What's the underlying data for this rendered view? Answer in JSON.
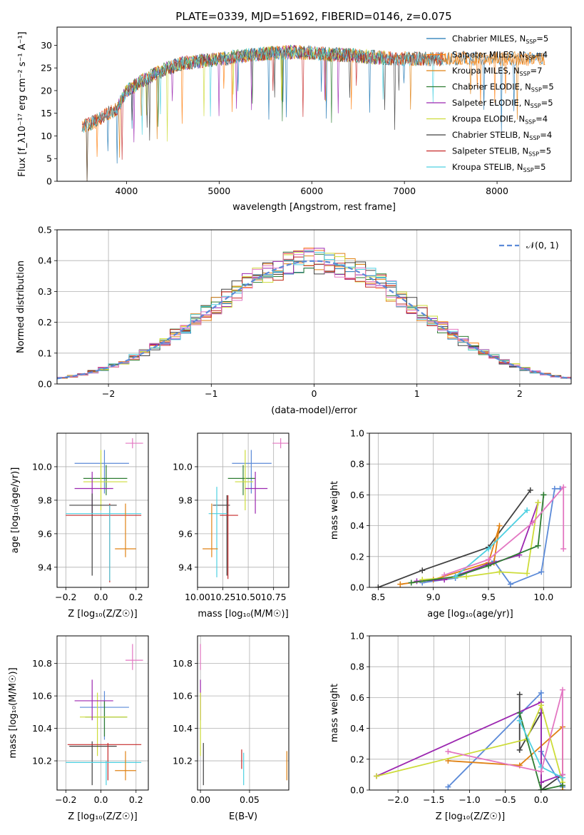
{
  "figure": {
    "title": "PLATE=0339, MJD=51692, FIBERID=0146, z=0.075"
  },
  "chart_data": [
    {
      "id": "spectrum",
      "type": "line",
      "xlabel": "wavelength [Angstrom, rest frame]",
      "ylabel": "Flux [f_λ10⁻¹⁷ erg cm⁻² s⁻¹ A⁻¹]",
      "xlim": [
        3250,
        8800
      ],
      "ylim": [
        0,
        34
      ],
      "xticks": [
        4000,
        5000,
        6000,
        7000,
        8000
      ],
      "yticks": [
        0,
        5,
        10,
        15,
        20,
        25,
        30
      ],
      "grid": false,
      "legend_position": "top-right",
      "continuum": {
        "x": [
          3520,
          3650,
          3800,
          3900,
          4000,
          4200,
          4400,
          4600,
          4800,
          5000,
          5200,
          5400,
          5600,
          5800,
          6000,
          6200,
          6400,
          6600,
          6800,
          7000,
          7200,
          7420
        ],
        "y": [
          12,
          13,
          15,
          16,
          20,
          22.5,
          24.5,
          26,
          26.5,
          27,
          27.5,
          28,
          28.3,
          28.5,
          28.3,
          28,
          27.8,
          27.5,
          27.2,
          27,
          27,
          27
        ]
      },
      "series": [
        {
          "name": "Chabrier MILES, N_SSP=5",
          "label_main": "Chabrier MILES, N",
          "label_tail": "=5",
          "color": "#1f77b4",
          "x_range": [
            3520,
            8520
          ]
        },
        {
          "name": "Salpeter MILES, N_SSP=4",
          "label_main": "Salpeter MILES, N",
          "label_tail": "=4",
          "color": "#ff7f0e",
          "x_range": [
            3520,
            8520
          ]
        },
        {
          "name": "Kroupa MILES, N_SSP=7",
          "label_main": "Kroupa MILES, N",
          "label_tail": "=7",
          "color": "#e08214",
          "x_range": [
            3520,
            8520
          ]
        },
        {
          "name": "Chabrier ELODIE, N_SSP=5",
          "label_main": "Chabrier ELODIE, N",
          "label_tail": "=5",
          "color": "#2e7d32",
          "x_range": [
            3900,
            6800
          ]
        },
        {
          "name": "Salpeter ELODIE, N_SSP=5",
          "label_main": "Salpeter ELODIE, N",
          "label_tail": "=5",
          "color": "#9c27b0",
          "x_range": [
            3900,
            6800
          ]
        },
        {
          "name": "Kroupa ELODIE, N_SSP=4",
          "label_main": "Kroupa ELODIE, N",
          "label_tail": "=4",
          "color": "#cddc39",
          "x_range": [
            3900,
            6800
          ]
        },
        {
          "name": "Chabrier STELIB, N_SSP=4",
          "label_main": "Chabrier STELIB, N",
          "label_tail": "=4",
          "color": "#404040",
          "x_range": [
            3520,
            7420
          ]
        },
        {
          "name": "Salpeter STELIB, N_SSP=5",
          "label_main": "Salpeter STELIB, N",
          "label_tail": "=5",
          "color": "#c62828",
          "x_range": [
            3520,
            7420
          ]
        },
        {
          "name": "Kroupa STELIB, N_SSP=5",
          "label_main": "Kroupa STELIB, N",
          "label_tail": "=5",
          "color": "#4dd0e1",
          "x_range": [
            3520,
            7420
          ]
        }
      ],
      "legend_subscript": "SSP"
    },
    {
      "id": "residuals",
      "type": "histogram",
      "xlabel": "(data-model)/error",
      "ylabel": "Normed distribution",
      "xlim": [
        -2.5,
        2.5
      ],
      "ylim": [
        0,
        0.5
      ],
      "xticks": [
        -2,
        -1,
        0,
        1,
        2
      ],
      "yticks": [
        0.0,
        0.1,
        0.2,
        0.3,
        0.4,
        0.5
      ],
      "grid": true,
      "bin_width": 0.1,
      "reference": {
        "name": "𝒩(0, 1)",
        "color": "#5b8ad8"
      },
      "series_colors": [
        "#1f77b4",
        "#ff7f0e",
        "#e08214",
        "#2e7d32",
        "#9c27b0",
        "#cddc39",
        "#404040",
        "#c62828",
        "#4dd0e1",
        "#e377c2"
      ]
    },
    {
      "id": "age-vs-Z",
      "type": "errorbar",
      "xlabel": "Z [log₁₀(Z/Z☉)]",
      "ylabel": "age  [log₁₀(age/yr)]",
      "xlim": [
        -0.25,
        0.27
      ],
      "ylim": [
        9.28,
        10.2
      ],
      "xticks": [
        -0.2,
        0.0,
        0.2
      ],
      "xticklabels": [
        "−0.2",
        "0.0",
        "0.2"
      ],
      "yticks": [
        9.4,
        9.6,
        9.8,
        10.0
      ],
      "grid": true,
      "points": [
        {
          "x": 0.02,
          "y": 10.02,
          "xerr": [
            0.17,
            0.14
          ],
          "yerr": [
            0.18,
            0.08
          ],
          "color": "#5b8ad8"
        },
        {
          "x": 0.03,
          "y": 9.93,
          "xerr": [
            0.13,
            0.12
          ],
          "yerr": [
            0.1,
            0.08
          ],
          "color": "#2e7d32"
        },
        {
          "x": 0.0,
          "y": 9.91,
          "xerr": [
            0.1,
            0.15
          ],
          "yerr": [
            0.17,
            0.19
          ],
          "color": "#cddc39"
        },
        {
          "x": -0.05,
          "y": 9.87,
          "xerr": [
            0.1,
            0.12
          ],
          "yerr": [
            0.15,
            0.1
          ],
          "color": "#9c27b0"
        },
        {
          "x": -0.05,
          "y": 9.77,
          "xerr": [
            0.13,
            0.14
          ],
          "yerr": [
            0.42,
            0.07
          ],
          "color": "#404040"
        },
        {
          "x": 0.05,
          "y": 9.71,
          "xerr": [
            0.25,
            0.18
          ],
          "yerr": [
            0.4,
            0.07
          ],
          "color": "#c62828"
        },
        {
          "x": 0.05,
          "y": 9.72,
          "xerr": [
            0.25,
            0.18
          ],
          "yerr": [
            0.4,
            0.05
          ],
          "color": "#4dd0e1"
        },
        {
          "x": 0.14,
          "y": 9.51,
          "xerr": [
            0.06,
            0.06
          ],
          "yerr": [
            0.05,
            0.27
          ],
          "color": "#e08214"
        },
        {
          "x": 0.18,
          "y": 10.14,
          "xerr": [
            0.04,
            0.06
          ],
          "yerr": [
            0.03,
            0.03
          ],
          "color": "#e377c2"
        }
      ]
    },
    {
      "id": "age-vs-mass",
      "type": "errorbar",
      "xlabel": "mass [log₁₀(M/M☉)]",
      "ylabel": "",
      "xlim": [
        10.0,
        10.9
      ],
      "ylim": [
        9.28,
        10.2
      ],
      "xticks": [
        10.0,
        10.25,
        10.5,
        10.75
      ],
      "xticklabels": [
        "10.00",
        "10.25",
        "10.50",
        "10.75"
      ],
      "yticks": [
        9.4,
        9.6,
        9.8,
        10.0
      ],
      "grid": true,
      "points": [
        {
          "x": 10.53,
          "y": 10.02,
          "xerr": [
            0.19,
            0.2
          ],
          "yerr": [
            0.18,
            0.08
          ],
          "color": "#5b8ad8"
        },
        {
          "x": 10.45,
          "y": 9.93,
          "xerr": [
            0.15,
            0.12
          ],
          "yerr": [
            0.1,
            0.08
          ],
          "color": "#2e7d32"
        },
        {
          "x": 10.47,
          "y": 9.91,
          "xerr": [
            0.1,
            0.08
          ],
          "yerr": [
            0.17,
            0.19
          ],
          "color": "#cddc39"
        },
        {
          "x": 10.57,
          "y": 9.87,
          "xerr": [
            0.1,
            0.12
          ],
          "yerr": [
            0.15,
            0.1
          ],
          "color": "#9c27b0"
        },
        {
          "x": 10.29,
          "y": 9.77,
          "xerr": [
            0.14,
            0.03
          ],
          "yerr": [
            0.42,
            0.06
          ],
          "color": "#404040"
        },
        {
          "x": 10.3,
          "y": 9.71,
          "xerr": [
            0.08,
            0.1
          ],
          "yerr": [
            0.38,
            0.12
          ],
          "color": "#c62828"
        },
        {
          "x": 10.19,
          "y": 9.72,
          "xerr": [
            0.08,
            0.1
          ],
          "yerr": [
            0.38,
            0.16
          ],
          "color": "#4dd0e1"
        },
        {
          "x": 10.14,
          "y": 9.51,
          "xerr": [
            0.09,
            0.06
          ],
          "yerr": [
            0.05,
            0.27
          ],
          "color": "#e08214"
        },
        {
          "x": 10.82,
          "y": 10.14,
          "xerr": [
            0.08,
            0.1
          ],
          "yerr": [
            0.03,
            0.03
          ],
          "color": "#e377c2"
        }
      ]
    },
    {
      "id": "mass-weight-vs-age",
      "type": "line",
      "xlabel": "age  [log₁₀(age/yr)]",
      "ylabel": "mass weight",
      "xlim": [
        8.42,
        10.25
      ],
      "ylim": [
        0,
        1.0
      ],
      "xticks": [
        8.5,
        9.0,
        9.5,
        10.0
      ],
      "yticks": [
        0.0,
        0.2,
        0.4,
        0.6,
        0.8,
        1.0
      ],
      "grid": true,
      "series": [
        {
          "color": "#404040",
          "x": [
            8.5,
            8.9,
            9.5,
            9.88
          ],
          "y": [
            0.0,
            0.11,
            0.26,
            0.63
          ]
        },
        {
          "color": "#5b8ad8",
          "x": [
            8.9,
            9.2,
            9.55,
            9.7,
            9.98,
            10.1,
            10.15
          ],
          "y": [
            0.03,
            0.06,
            0.17,
            0.02,
            0.1,
            0.64,
            0.64
          ]
        },
        {
          "color": "#e08214",
          "x": [
            8.7,
            9.0,
            9.5,
            9.6,
            9.55
          ],
          "y": [
            0.02,
            0.05,
            0.16,
            0.4,
            0.16
          ]
        },
        {
          "color": "#9c27b0",
          "x": [
            8.85,
            9.1,
            9.5,
            9.78,
            9.95
          ],
          "y": [
            0.04,
            0.05,
            0.15,
            0.21,
            0.55
          ]
        },
        {
          "color": "#cddc39",
          "x": [
            8.9,
            9.3,
            9.6,
            9.85,
            9.95
          ],
          "y": [
            0.05,
            0.07,
            0.1,
            0.09,
            0.55
          ]
        },
        {
          "color": "#2e7d32",
          "x": [
            8.8,
            9.2,
            9.5,
            9.95,
            10.0,
            10.0
          ],
          "y": [
            0.03,
            0.07,
            0.14,
            0.27,
            0.6,
            0.6
          ]
        },
        {
          "color": "#4dd0e1",
          "x": [
            9.2,
            9.5,
            9.85
          ],
          "y": [
            0.07,
            0.25,
            0.5
          ]
        },
        {
          "color": "#e377c2",
          "x": [
            9.1,
            9.5,
            9.9,
            10.18,
            10.18
          ],
          "y": [
            0.08,
            0.18,
            0.42,
            0.65,
            0.25
          ]
        }
      ]
    },
    {
      "id": "mass-vs-Z",
      "type": "errorbar",
      "xlabel": "Z [log₁₀(Z/Z☉)]",
      "ylabel": "mass [log₁₀(M/M☉)]",
      "xlim": [
        -0.25,
        0.27
      ],
      "ylim": [
        10.02,
        10.97
      ],
      "xticks": [
        -0.2,
        0.0,
        0.2
      ],
      "xticklabels": [
        "−0.2",
        "0.0",
        "0.2"
      ],
      "yticks": [
        10.2,
        10.4,
        10.6,
        10.8
      ],
      "grid": true,
      "points": [
        {
          "x": 0.02,
          "y": 10.53,
          "xerr": [
            0.14,
            0.14
          ],
          "yerr": [
            0.2,
            0.1
          ],
          "color": "#5b8ad8"
        },
        {
          "x": 0.02,
          "y": 10.47,
          "xerr": [
            0.11,
            0.13
          ],
          "yerr": [
            0.12,
            0.1
          ],
          "color": "#2e7d32"
        },
        {
          "x": -0.02,
          "y": 10.47,
          "xerr": [
            0.1,
            0.17
          ],
          "yerr": [
            0.24,
            0.15
          ],
          "color": "#cddc39"
        },
        {
          "x": -0.05,
          "y": 10.57,
          "xerr": [
            0.1,
            0.12
          ],
          "yerr": [
            0.12,
            0.13
          ],
          "color": "#9c27b0"
        },
        {
          "x": -0.05,
          "y": 10.29,
          "xerr": [
            0.13,
            0.14
          ],
          "yerr": [
            0.24,
            0.03
          ],
          "color": "#404040"
        },
        {
          "x": 0.04,
          "y": 10.3,
          "xerr": [
            0.23,
            0.19
          ],
          "yerr": [
            0.22,
            0.01
          ],
          "color": "#c62828"
        },
        {
          "x": 0.03,
          "y": 10.19,
          "xerr": [
            0.23,
            0.2
          ],
          "yerr": [
            0.14,
            0.01
          ],
          "color": "#4dd0e1"
        },
        {
          "x": 0.14,
          "y": 10.14,
          "xerr": [
            0.06,
            0.06
          ],
          "yerr": [
            0.06,
            0.12
          ],
          "color": "#e08214"
        },
        {
          "x": 0.18,
          "y": 10.82,
          "xerr": [
            0.04,
            0.06
          ],
          "yerr": [
            0.06,
            0.1
          ],
          "color": "#e377c2"
        }
      ]
    },
    {
      "id": "ebv",
      "type": "errorbar",
      "xlabel": "E(B-V)",
      "ylabel": "",
      "xlim": [
        -0.003,
        0.09
      ],
      "ylim": [
        10.02,
        10.97
      ],
      "xticks": [
        0.0,
        0.05
      ],
      "xticklabels": [
        "0.00",
        "0.05"
      ],
      "yticks": [
        10.2,
        10.4,
        10.6,
        10.8
      ],
      "grid": true,
      "points": [
        {
          "x": 0.0,
          "y": 10.82,
          "xerr": [
            0,
            0
          ],
          "yerr": [
            0.06,
            0.1
          ],
          "color": "#e377c2"
        },
        {
          "x": 0.0,
          "y": 10.57,
          "xerr": [
            0,
            0
          ],
          "yerr": [
            0.12,
            0.13
          ],
          "color": "#9c27b0"
        },
        {
          "x": 0.0,
          "y": 10.47,
          "xerr": [
            0,
            0
          ],
          "yerr": [
            0.24,
            0.15
          ],
          "color": "#cddc39"
        },
        {
          "x": 0.003,
          "y": 10.19,
          "xerr": [
            0,
            0
          ],
          "yerr": [
            0.14,
            0.12
          ],
          "color": "#404040"
        },
        {
          "x": 0.042,
          "y": 10.2,
          "xerr": [
            0,
            0
          ],
          "yerr": [
            0.05,
            0.07
          ],
          "color": "#c62828"
        },
        {
          "x": 0.044,
          "y": 10.17,
          "xerr": [
            0,
            0
          ],
          "yerr": [
            0.12,
            0.08
          ],
          "color": "#4dd0e1"
        },
        {
          "x": 0.088,
          "y": 10.17,
          "xerr": [
            0,
            0
          ],
          "yerr": [
            0.09,
            0.09
          ],
          "color": "#e08214"
        }
      ]
    },
    {
      "id": "mass-weight-vs-Z",
      "type": "line",
      "xlabel": "Z [log₁₀(Z/Z☉)]",
      "ylabel": "mass weight",
      "xlim": [
        -2.4,
        0.42
      ],
      "ylim": [
        0,
        1.0
      ],
      "xticks": [
        -2.0,
        -1.5,
        -1.0,
        -0.5,
        0.0
      ],
      "xticklabels": [
        "−2.0",
        "−1.5",
        "−1.0",
        "−0.5",
        "0.0"
      ],
      "yticks": [
        0.0,
        0.2,
        0.4,
        0.6,
        0.8,
        1.0
      ],
      "grid": true,
      "series": [
        {
          "color": "#404040",
          "x": [
            -0.3,
            -0.3,
            0.0,
            0.0,
            0.3,
            0.3
          ],
          "y": [
            0.62,
            0.26,
            0.5,
            0.0,
            0.1,
            0.02
          ]
        },
        {
          "color": "#5b8ad8",
          "x": [
            -1.3,
            0.0,
            0.0,
            0.3
          ],
          "y": [
            0.02,
            0.63,
            0.25,
            0.02
          ]
        },
        {
          "color": "#e08214",
          "x": [
            -1.3,
            -0.3,
            0.3,
            0.3
          ],
          "y": [
            0.19,
            0.16,
            0.41,
            0.0
          ]
        },
        {
          "color": "#9c27b0",
          "x": [
            -2.3,
            0.0,
            0.0,
            0.3
          ],
          "y": [
            0.09,
            0.57,
            0.05,
            0.1
          ]
        },
        {
          "color": "#cddc39",
          "x": [
            -2.3,
            -0.2,
            0.0,
            0.3
          ],
          "y": [
            0.09,
            0.33,
            0.55,
            0.05
          ]
        },
        {
          "color": "#2e7d32",
          "x": [
            -0.3,
            0.0,
            0.3
          ],
          "y": [
            0.5,
            0.0,
            0.03
          ]
        },
        {
          "color": "#4dd0e1",
          "x": [
            -0.3,
            0.0,
            0.3
          ],
          "y": [
            0.45,
            0.15,
            0.08
          ]
        },
        {
          "color": "#e377c2",
          "x": [
            -1.3,
            0.0,
            0.3,
            0.3
          ],
          "y": [
            0.25,
            0.12,
            0.65,
            0.1
          ]
        }
      ]
    }
  ]
}
